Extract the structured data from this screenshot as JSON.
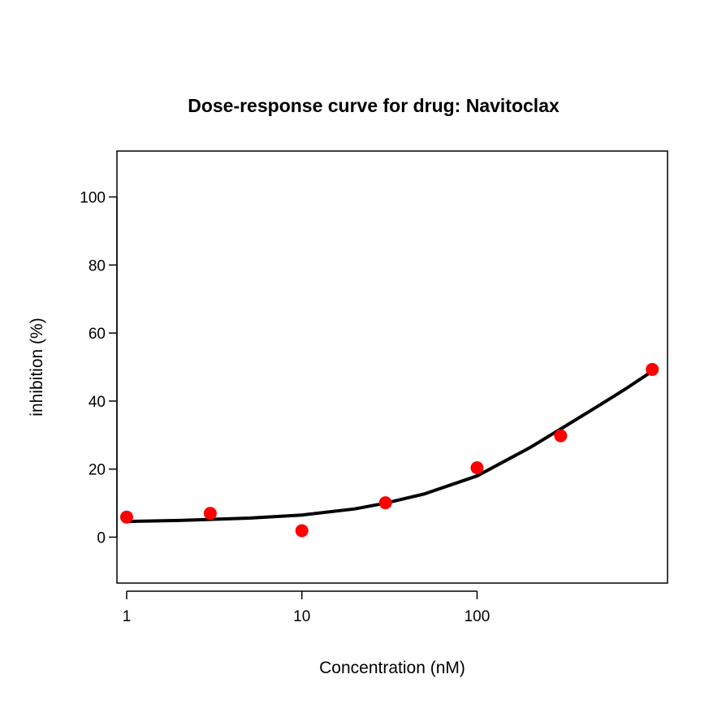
{
  "chart_data": {
    "type": "scatter",
    "title": "Dose-response curve for drug: Navitoclax",
    "xlabel": "Concentration (nM)",
    "ylabel": "inhibition (%)",
    "x_scale": "log10",
    "xlim": [
      0.88,
      1222
    ],
    "ylim": [
      -13.5,
      113.5
    ],
    "x_ticks": [
      1,
      10,
      100
    ],
    "x_tick_labels": [
      "1",
      "10",
      "100"
    ],
    "y_ticks": [
      0,
      20,
      40,
      60,
      80,
      100
    ],
    "y_tick_labels": [
      "0",
      "20",
      "40",
      "60",
      "80",
      "100"
    ],
    "grid": false,
    "series": [
      {
        "type": "scatter",
        "color": "#ff0000",
        "x": [
          1,
          3,
          10,
          30,
          100,
          300,
          1000
        ],
        "y": [
          5.9,
          7.0,
          1.9,
          10.1,
          20.4,
          29.8,
          49.3
        ]
      },
      {
        "type": "line",
        "color": "#000000",
        "x": [
          1,
          2,
          5,
          10,
          20,
          30,
          50,
          100,
          200,
          300,
          500,
          700,
          1000
        ],
        "y": [
          4.6,
          4.9,
          5.6,
          6.5,
          8.3,
          10.0,
          12.7,
          18.0,
          26.3,
          31.8,
          38.8,
          43.5,
          48.8
        ]
      }
    ]
  }
}
